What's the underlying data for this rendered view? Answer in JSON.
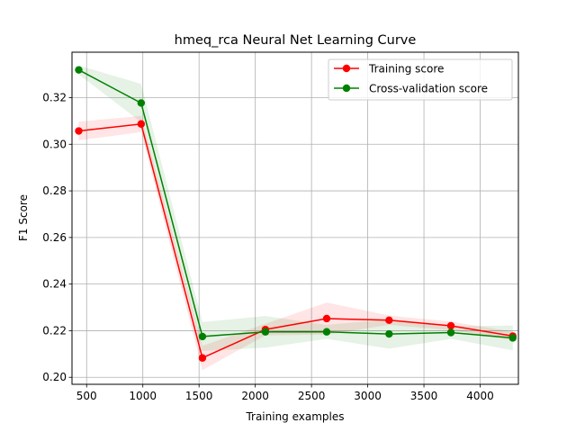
{
  "chart_data": {
    "type": "line",
    "title": "hmeq_rca Neural Net Learning Curve",
    "xlabel": "Training examples",
    "ylabel": "F1 Score",
    "xlim": [
      370,
      4340
    ],
    "ylim": [
      0.197,
      0.3395
    ],
    "xticks": [
      500,
      1000,
      1500,
      2000,
      2500,
      3000,
      3500,
      4000
    ],
    "yticks": [
      0.2,
      0.22,
      0.24,
      0.26,
      0.28,
      0.3,
      0.32
    ],
    "ytick_labels": [
      "0.20",
      "0.22",
      "0.24",
      "0.26",
      "0.28",
      "0.30",
      "0.32"
    ],
    "grid": true,
    "legend_position": "top-right",
    "x": [
      430,
      985,
      1530,
      2090,
      2635,
      3190,
      3740,
      4290
    ],
    "series": [
      {
        "name": "Training score",
        "color": "#ff0000",
        "values": [
          0.3057,
          0.3087,
          0.2083,
          0.2205,
          0.2252,
          0.2245,
          0.2221,
          0.2177
        ],
        "band_lower": [
          0.3017,
          0.3052,
          0.2031,
          0.218,
          0.2183,
          0.2225,
          0.2203,
          0.2158
        ],
        "band_upper": [
          0.3097,
          0.3122,
          0.2135,
          0.223,
          0.2321,
          0.2265,
          0.2239,
          0.2196
        ]
      },
      {
        "name": "Cross-validation score",
        "color": "#008000",
        "values": [
          0.3319,
          0.3177,
          0.2175,
          0.2195,
          0.2195,
          0.2186,
          0.2192,
          0.2169
        ],
        "band_lower": [
          0.33,
          0.3095,
          0.2113,
          0.2127,
          0.2165,
          0.2123,
          0.2165,
          0.2116
        ],
        "band_upper": [
          0.3338,
          0.3259,
          0.2237,
          0.2263,
          0.2225,
          0.2249,
          0.2219,
          0.2222
        ]
      }
    ]
  }
}
